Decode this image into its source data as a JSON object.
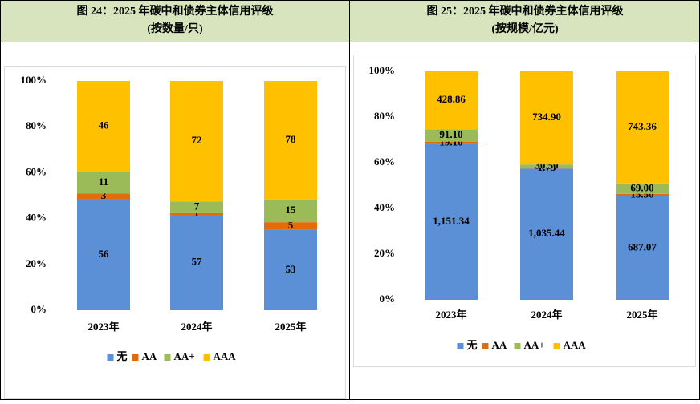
{
  "chart_data": [
    {
      "type": "bar",
      "stacked": "percent",
      "title": "图 24：2025 年碳中和债券主体信用评级",
      "subtitle": "(按数量/只)",
      "categories": [
        "2023年",
        "2024年",
        "2025年"
      ],
      "series": [
        {
          "name": "无",
          "color": "#5b8fd6",
          "values": [
            56,
            57,
            53
          ]
        },
        {
          "name": "AA",
          "color": "#e36c0a",
          "values": [
            3,
            1,
            5
          ]
        },
        {
          "name": "AA+",
          "color": "#9bbb59",
          "values": [
            11,
            7,
            15
          ]
        },
        {
          "name": "AAA",
          "color": "#ffc000",
          "values": [
            46,
            72,
            78
          ]
        }
      ],
      "ylim": [
        0,
        100
      ],
      "yticks": [
        {
          "value": 0,
          "label": "0%"
        },
        {
          "value": 20,
          "label": "20%"
        },
        {
          "value": 40,
          "label": "40%"
        },
        {
          "value": 60,
          "label": "60%"
        },
        {
          "value": 80,
          "label": "80%"
        },
        {
          "value": 100,
          "label": "100%"
        }
      ],
      "legend": "bottom"
    },
    {
      "type": "bar",
      "stacked": "percent",
      "title": "图 25：2025 年碳中和债券主体信用评级",
      "subtitle": "(按规模/亿元)",
      "categories": [
        "2023年",
        "2024年",
        "2025年"
      ],
      "series": [
        {
          "name": "无",
          "color": "#5b8fd6",
          "values": [
            1151.34,
            1035.44,
            687.07
          ],
          "value_labels": [
            "1,151.34",
            "1,035.44",
            "687.07"
          ]
        },
        {
          "name": "AA",
          "color": "#e36c0a",
          "values": [
            19.1,
            1.75,
            15.5
          ],
          "value_labels": [
            "19.10",
            "1.75",
            "15.50"
          ]
        },
        {
          "name": "AA+",
          "color": "#9bbb59",
          "values": [
            91.1,
            30.5,
            69
          ],
          "value_labels": [
            "91.10",
            "30.50",
            "69.00"
          ]
        },
        {
          "name": "AAA",
          "color": "#ffc000",
          "values": [
            428.86,
            734.9,
            743.36
          ],
          "value_labels": [
            "428.86",
            "734.90",
            "743.36"
          ]
        }
      ],
      "ylim": [
        0,
        100
      ],
      "yticks": [
        {
          "value": 0,
          "label": "0%"
        },
        {
          "value": 20,
          "label": "20%"
        },
        {
          "value": 40,
          "label": "40%"
        },
        {
          "value": 60,
          "label": "60%"
        },
        {
          "value": 80,
          "label": "80%"
        },
        {
          "value": 100,
          "label": "100%"
        }
      ],
      "legend": "bottom"
    }
  ]
}
